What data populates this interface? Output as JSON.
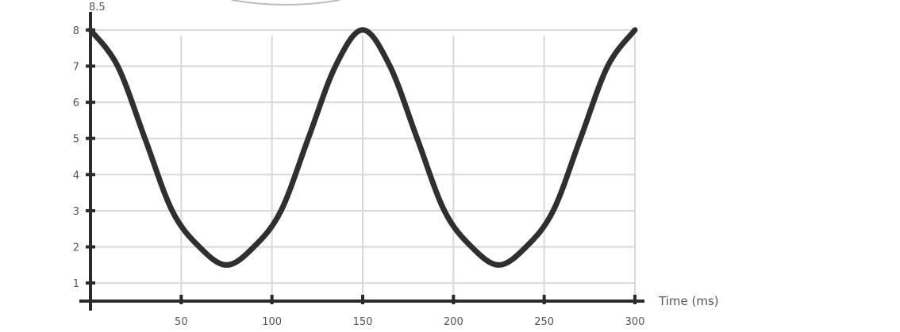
{
  "chart_data": {
    "type": "line",
    "title": "",
    "xlabel": "Time (ms)",
    "ylabel": "",
    "y_top_label": "8.5",
    "xlim": [
      0,
      300
    ],
    "ylim": [
      0.5,
      8.5
    ],
    "x_ticks": [
      0,
      50,
      100,
      150,
      200,
      250,
      300
    ],
    "x_tick_labels": [
      "",
      "50",
      "100",
      "150",
      "200",
      "250",
      "300"
    ],
    "y_ticks": [
      1,
      2,
      3,
      4,
      5,
      6,
      7,
      8
    ],
    "y_tick_labels": [
      "1",
      "2",
      "3",
      "4",
      "5",
      "6",
      "7",
      "8"
    ],
    "grid": true,
    "legend": "none",
    "series": [
      {
        "name": "",
        "color": "#2f2f2f",
        "x": [
          0,
          15,
          30,
          45,
          60,
          75,
          90,
          105,
          120,
          135,
          150,
          165,
          180,
          195,
          210,
          225,
          240,
          255,
          270,
          285,
          300
        ],
        "y": [
          8.0,
          7.0,
          5.0,
          3.0,
          2.0,
          1.5,
          2.0,
          3.0,
          5.0,
          7.0,
          8.0,
          7.0,
          5.0,
          3.0,
          2.0,
          1.5,
          2.0,
          3.0,
          5.0,
          7.0,
          8.0
        ]
      }
    ]
  }
}
